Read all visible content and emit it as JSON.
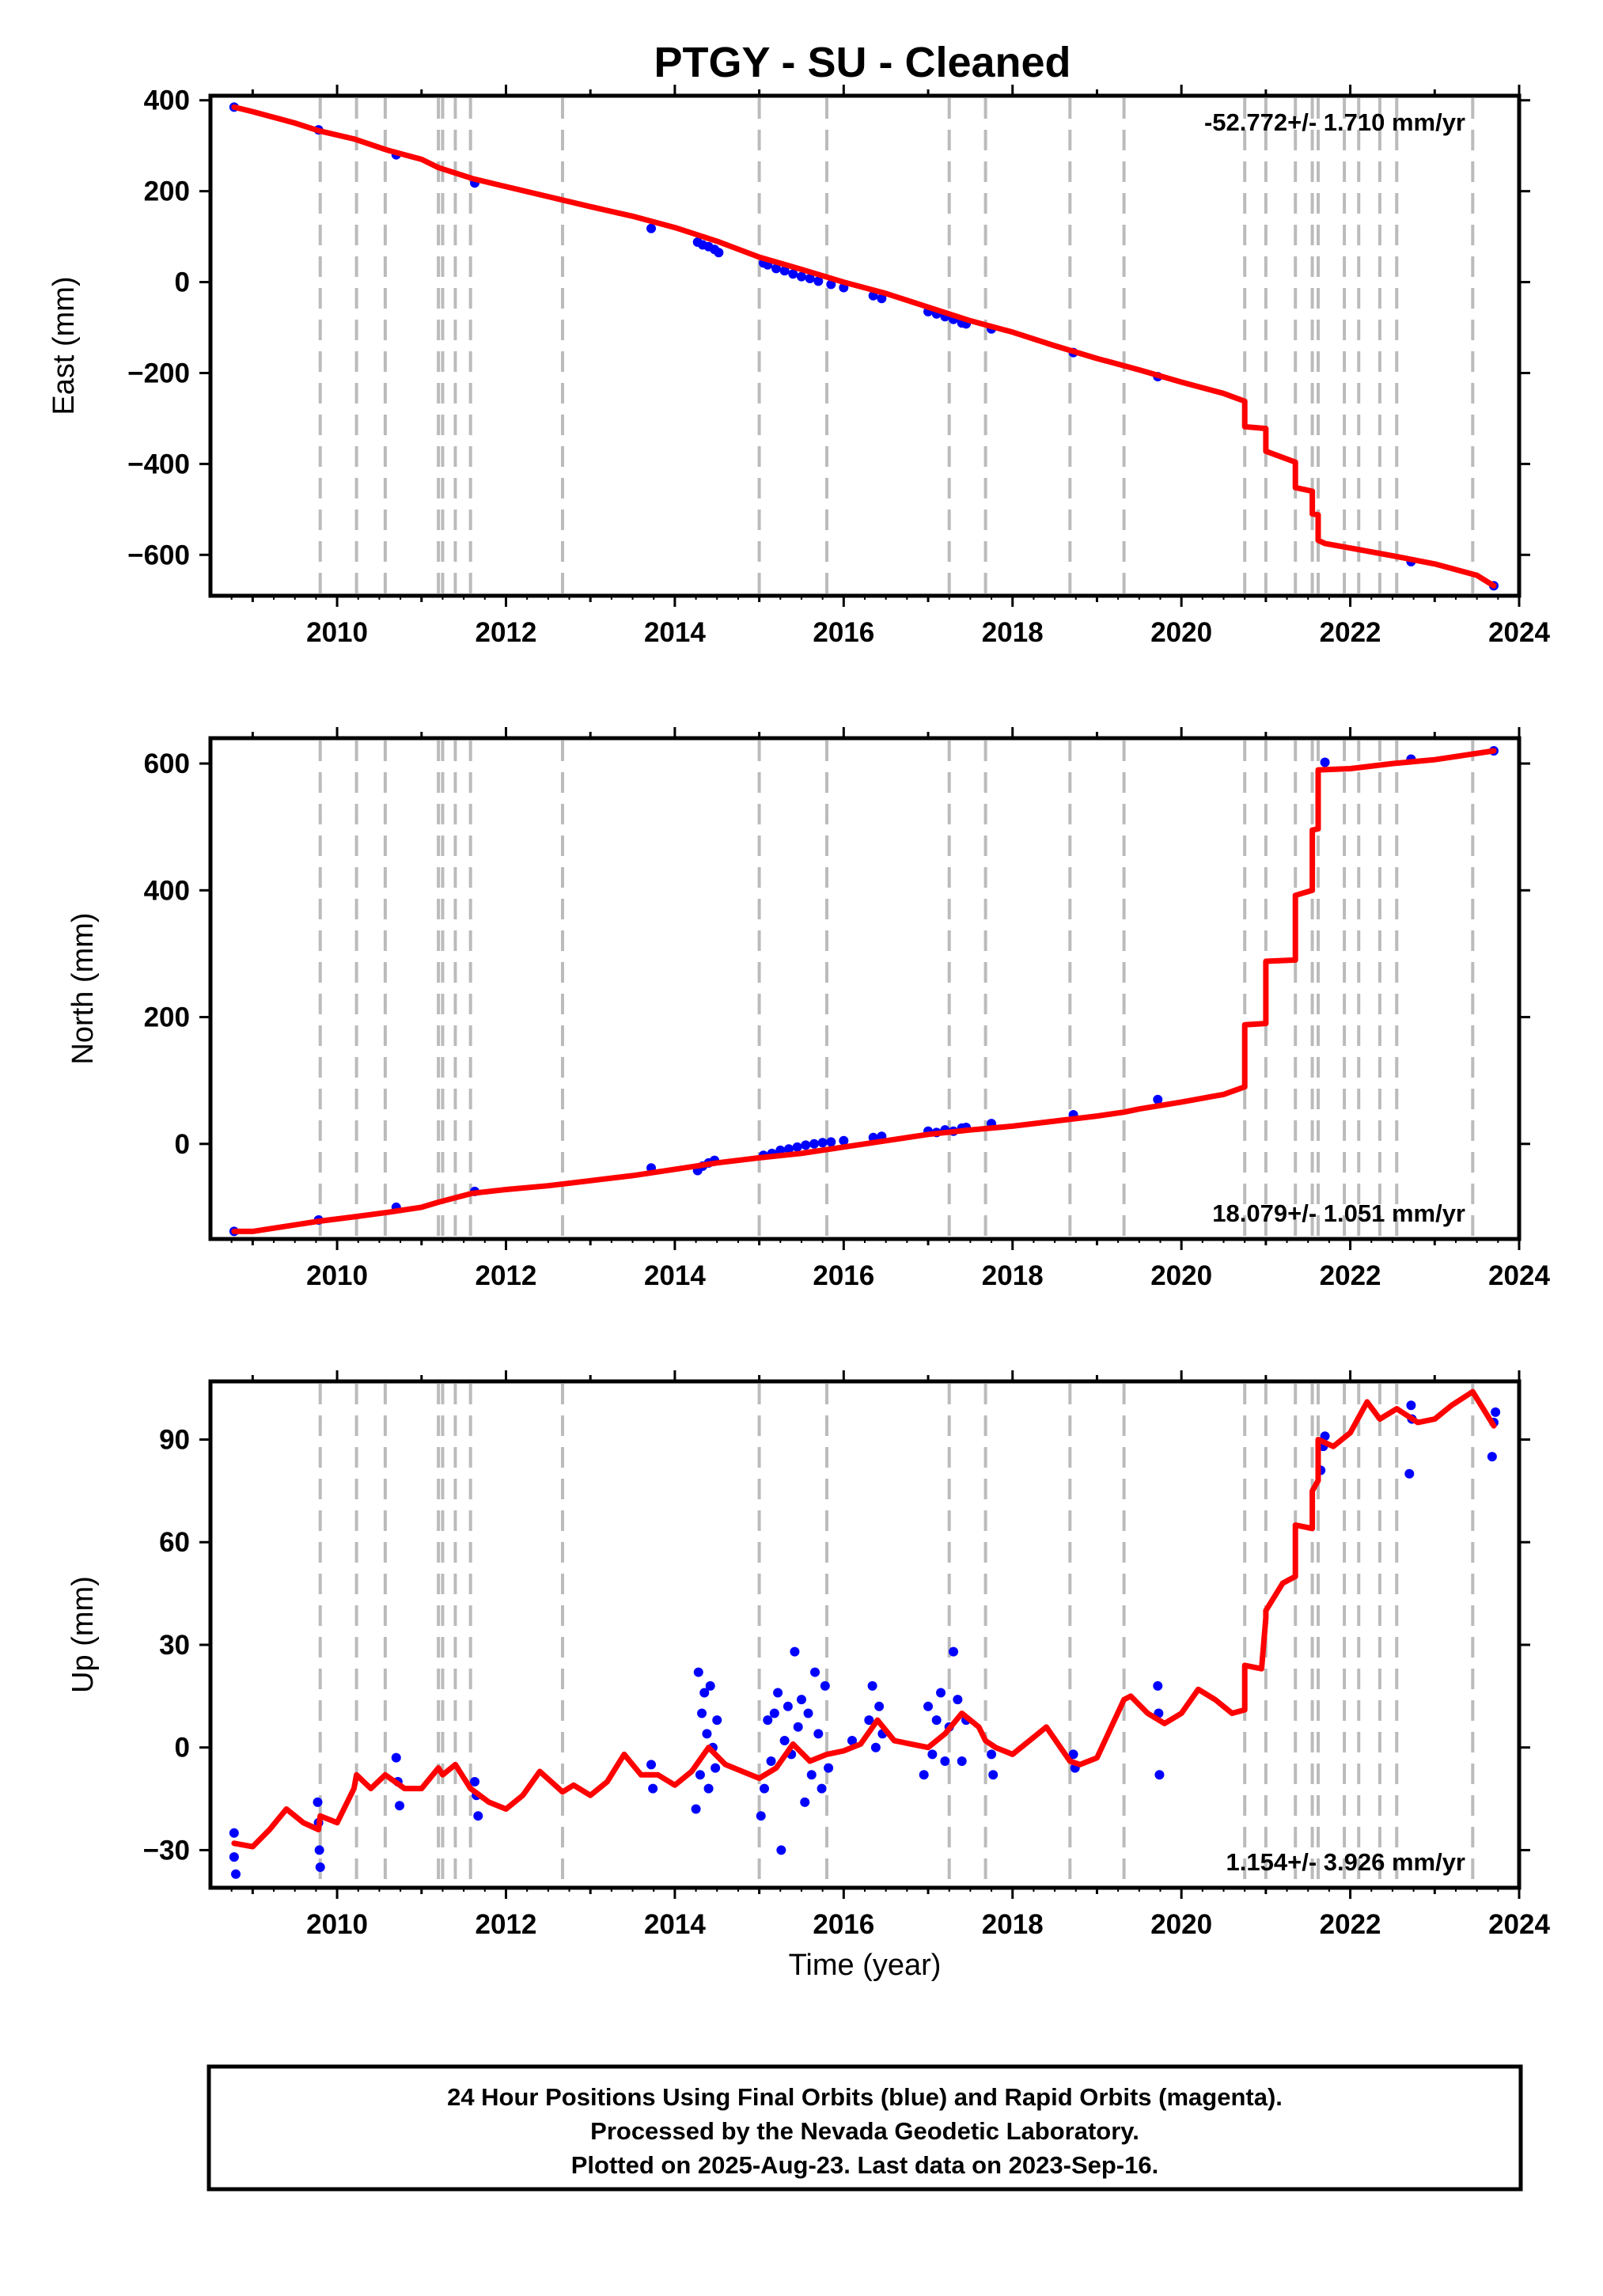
{
  "title": "PTGY  - SU - Cleaned",
  "colors": {
    "observations": "#0000ff",
    "model": "#ff0000",
    "events": "#bbbbbb",
    "frame": "#000000"
  },
  "footer": {
    "line1": "24 Hour Positions Using Final Orbits (blue) and Rapid Orbits (magenta).",
    "line2": "Processed by the Nevada Geodetic Laboratory.",
    "line3": "Plotted on 2025-Aug-23. Last data on 2023-Sep-16."
  },
  "chart_data": [
    {
      "type": "scatter",
      "ylabel": "East (mm)",
      "xlabel": "",
      "rate_label": "-52.772+/- 1.710 mm/yr",
      "xlim": [
        2008.5,
        2024
      ],
      "ylim": [
        -690,
        410
      ],
      "xticks": [
        2010,
        2012,
        2014,
        2016,
        2018,
        2020,
        2022,
        2024
      ],
      "yticks": [
        -600,
        -400,
        -200,
        0,
        200,
        400
      ],
      "ytick_labels": [
        "−600",
        "−400",
        "−200",
        "0",
        "200",
        "400"
      ],
      "event_lines": [
        2009.8,
        2010.23,
        2010.57,
        2011.2,
        2011.25,
        2011.4,
        2011.58,
        2012.67,
        2015.0,
        2015.8,
        2017.25,
        2017.68,
        2018.68,
        2019.32,
        2020.75,
        2021.0,
        2021.35,
        2021.55,
        2021.62,
        2021.93,
        2022.1,
        2022.35,
        2022.55,
        2023.45
      ],
      "series": [
        {
          "role": "observations",
          "x": [
            2008.78,
            2009.78,
            2010.7,
            2011.63,
            2013.72,
            2014.27,
            2014.33,
            2014.4,
            2014.47,
            2014.52,
            2015.05,
            2015.1,
            2015.2,
            2015.3,
            2015.4,
            2015.5,
            2015.6,
            2015.7,
            2015.85,
            2016.0,
            2016.35,
            2016.45,
            2017.0,
            2017.1,
            2017.2,
            2017.3,
            2017.4,
            2017.45,
            2017.75,
            2018.72,
            2019.72,
            2022.72,
            2023.7
          ],
          "y": [
            385,
            335,
            280,
            218,
            118,
            88,
            82,
            78,
            72,
            65,
            42,
            38,
            30,
            25,
            18,
            12,
            8,
            2,
            -5,
            -12,
            -30,
            -36,
            -65,
            -70,
            -76,
            -82,
            -90,
            -92,
            -103,
            -155,
            -208,
            -615,
            -668
          ]
        },
        {
          "role": "model",
          "x": [
            2008.78,
            2009.0,
            2009.5,
            2009.78,
            2010.2,
            2010.6,
            2011.0,
            2011.2,
            2011.6,
            2012.0,
            2012.5,
            2013.0,
            2013.5,
            2014.0,
            2014.5,
            2015.0,
            2015.5,
            2016.0,
            2016.5,
            2017.0,
            2017.5,
            2018.0,
            2018.5,
            2019.0,
            2019.5,
            2020.0,
            2020.5,
            2020.75,
            2020.75,
            2021.0,
            2021.0,
            2021.35,
            2021.35,
            2021.55,
            2021.55,
            2021.62,
            2021.62,
            2021.7,
            2022.0,
            2022.5,
            2023.0,
            2023.5,
            2023.7
          ],
          "y": [
            385,
            375,
            350,
            333,
            315,
            290,
            270,
            252,
            228,
            210,
            188,
            166,
            145,
            120,
            90,
            55,
            28,
            0,
            -25,
            -55,
            -85,
            -110,
            -140,
            -168,
            -193,
            -220,
            -245,
            -262,
            -318,
            -322,
            -372,
            -396,
            -452,
            -460,
            -510,
            -512,
            -568,
            -575,
            -585,
            -602,
            -620,
            -645,
            -668
          ]
        }
      ]
    },
    {
      "type": "scatter",
      "ylabel": "North (mm)",
      "xlabel": "",
      "rate_label": "18.079+/- 1.051 mm/yr",
      "xlim": [
        2008.5,
        2024
      ],
      "ylim": [
        -150,
        640
      ],
      "xticks": [
        2010,
        2012,
        2014,
        2016,
        2018,
        2020,
        2022,
        2024
      ],
      "yticks": [
        0,
        200,
        400,
        600
      ],
      "ytick_labels": [
        "0",
        "200",
        "400",
        "600"
      ],
      "event_lines": [
        2009.8,
        2010.23,
        2010.57,
        2011.2,
        2011.25,
        2011.4,
        2011.58,
        2012.67,
        2015.0,
        2015.8,
        2017.25,
        2017.68,
        2018.68,
        2019.32,
        2020.75,
        2021.0,
        2021.35,
        2021.55,
        2021.62,
        2021.93,
        2022.1,
        2022.35,
        2022.55,
        2023.45
      ],
      "series": [
        {
          "role": "observations",
          "x": [
            2008.78,
            2009.78,
            2010.7,
            2011.63,
            2013.72,
            2014.27,
            2014.33,
            2014.4,
            2014.47,
            2015.05,
            2015.15,
            2015.25,
            2015.35,
            2015.45,
            2015.55,
            2015.65,
            2015.75,
            2015.85,
            2016.0,
            2016.35,
            2016.45,
            2017.0,
            2017.1,
            2017.2,
            2017.3,
            2017.4,
            2017.45,
            2017.75,
            2018.72,
            2019.72,
            2021.7,
            2022.72,
            2023.7
          ],
          "y": [
            -138,
            -120,
            -100,
            -75,
            -38,
            -42,
            -35,
            -30,
            -26,
            -18,
            -15,
            -10,
            -8,
            -5,
            -2,
            0,
            2,
            3,
            5,
            10,
            12,
            20,
            18,
            22,
            20,
            25,
            26,
            32,
            46,
            70,
            602,
            607,
            620
          ]
        },
        {
          "role": "model",
          "x": [
            2008.78,
            2009.0,
            2009.78,
            2010.2,
            2010.6,
            2011.0,
            2011.2,
            2011.6,
            2012.0,
            2012.5,
            2013.0,
            2013.5,
            2014.0,
            2014.5,
            2015.0,
            2015.5,
            2016.0,
            2016.5,
            2017.0,
            2017.5,
            2018.0,
            2018.5,
            2019.0,
            2019.32,
            2019.5,
            2020.0,
            2020.5,
            2020.75,
            2020.75,
            2021.0,
            2021.0,
            2021.35,
            2021.35,
            2021.55,
            2021.55,
            2021.62,
            2021.62,
            2022.0,
            2022.5,
            2023.0,
            2023.7
          ],
          "y": [
            -138,
            -138,
            -122,
            -115,
            -108,
            -100,
            -92,
            -78,
            -72,
            -66,
            -58,
            -50,
            -40,
            -30,
            -22,
            -15,
            -5,
            5,
            15,
            22,
            28,
            36,
            44,
            50,
            55,
            66,
            78,
            90,
            188,
            190,
            288,
            290,
            392,
            400,
            495,
            497,
            590,
            592,
            600,
            606,
            620
          ]
        }
      ]
    },
    {
      "type": "scatter",
      "ylabel": "Up (mm)",
      "xlabel": "Time (year)",
      "rate_label": "1.154+/- 3.926 mm/yr",
      "xlim": [
        2008.5,
        2024
      ],
      "ylim": [
        -41,
        107
      ],
      "xticks": [
        2010,
        2012,
        2014,
        2016,
        2018,
        2020,
        2022,
        2024
      ],
      "yticks": [
        -30,
        0,
        30,
        60,
        90
      ],
      "ytick_labels": [
        "−30",
        "0",
        "30",
        "60",
        "90"
      ],
      "event_lines": [
        2009.8,
        2010.23,
        2010.57,
        2011.2,
        2011.25,
        2011.4,
        2011.58,
        2012.67,
        2015.0,
        2015.8,
        2017.25,
        2017.68,
        2018.68,
        2019.32,
        2020.75,
        2021.0,
        2021.35,
        2021.55,
        2021.62,
        2021.93,
        2022.1,
        2022.35,
        2022.55,
        2023.45
      ],
      "series": [
        {
          "role": "observations",
          "x": [
            2008.78,
            2008.78,
            2008.8,
            2009.77,
            2009.78,
            2009.79,
            2009.8,
            2010.7,
            2010.72,
            2010.74,
            2011.63,
            2011.65,
            2011.67,
            2013.72,
            2013.74,
            2014.25,
            2014.28,
            2014.3,
            2014.32,
            2014.35,
            2014.38,
            2014.4,
            2014.42,
            2014.45,
            2014.48,
            2014.5,
            2015.02,
            2015.06,
            2015.1,
            2015.14,
            2015.18,
            2015.22,
            2015.26,
            2015.3,
            2015.34,
            2015.38,
            2015.42,
            2015.46,
            2015.5,
            2015.54,
            2015.58,
            2015.62,
            2015.66,
            2015.7,
            2015.74,
            2015.78,
            2015.82,
            2016.1,
            2016.3,
            2016.34,
            2016.38,
            2016.42,
            2016.46,
            2016.95,
            2017.0,
            2017.05,
            2017.1,
            2017.15,
            2017.2,
            2017.25,
            2017.3,
            2017.35,
            2017.4,
            2017.45,
            2017.75,
            2017.77,
            2018.72,
            2018.74,
            2019.72,
            2019.73,
            2019.74,
            2021.65,
            2021.68,
            2021.7,
            2022.7,
            2022.72,
            2022.73,
            2023.68,
            2023.7,
            2023.72
          ],
          "y": [
            -25,
            -32,
            -37,
            -16,
            -22,
            -30,
            -35,
            -3,
            -10,
            -17,
            -10,
            -14,
            -20,
            -5,
            -12,
            -18,
            22,
            -8,
            10,
            16,
            4,
            -12,
            18,
            0,
            -6,
            8,
            -20,
            -12,
            8,
            -4,
            10,
            16,
            -30,
            2,
            12,
            -2,
            28,
            6,
            14,
            -16,
            10,
            -8,
            22,
            4,
            -12,
            18,
            -6,
            2,
            8,
            18,
            0,
            12,
            4,
            -8,
            12,
            -2,
            8,
            16,
            -4,
            6,
            28,
            14,
            -4,
            8,
            -2,
            -8,
            -2,
            -6,
            18,
            10,
            -8,
            81,
            88,
            91,
            80,
            100,
            96,
            85,
            95,
            98
          ]
        },
        {
          "role": "model",
          "x": [
            2008.78,
            2009.0,
            2009.2,
            2009.4,
            2009.6,
            2009.78,
            2009.8,
            2010.0,
            2010.2,
            2010.23,
            2010.4,
            2010.57,
            2010.8,
            2011.0,
            2011.2,
            2011.25,
            2011.4,
            2011.58,
            2011.8,
            2012.0,
            2012.2,
            2012.4,
            2012.67,
            2012.8,
            2013.0,
            2013.2,
            2013.4,
            2013.6,
            2013.8,
            2014.0,
            2014.2,
            2014.4,
            2014.6,
            2014.8,
            2015.0,
            2015.2,
            2015.4,
            2015.6,
            2015.8,
            2016.0,
            2016.2,
            2016.4,
            2016.6,
            2016.8,
            2017.0,
            2017.2,
            2017.4,
            2017.6,
            2017.68,
            2017.8,
            2018.0,
            2018.2,
            2018.4,
            2018.68,
            2018.8,
            2019.0,
            2019.32,
            2019.4,
            2019.6,
            2019.8,
            2020.0,
            2020.2,
            2020.4,
            2020.6,
            2020.75,
            2020.75,
            2020.95,
            2021.0,
            2021.0,
            2021.2,
            2021.35,
            2021.35,
            2021.55,
            2021.55,
            2021.62,
            2021.62,
            2021.8,
            2022.0,
            2022.2,
            2022.35,
            2022.55,
            2022.8,
            2023.0,
            2023.2,
            2023.45,
            2023.7
          ],
          "y": [
            -28,
            -29,
            -24,
            -18,
            -22,
            -24,
            -20,
            -22,
            -12,
            -8,
            -12,
            -8,
            -12,
            -12,
            -6,
            -8,
            -5,
            -12,
            -16,
            -18,
            -14,
            -7,
            -13,
            -11,
            -14,
            -10,
            -2,
            -8,
            -8,
            -11,
            -7,
            0,
            -5,
            -7,
            -9,
            -6,
            1,
            -4,
            -2,
            -1,
            1,
            8,
            2,
            1,
            0,
            4,
            10,
            6,
            2,
            0,
            -2,
            2,
            6,
            -4,
            -5,
            -3,
            14,
            15,
            10,
            7,
            10,
            17,
            14,
            10,
            11,
            24,
            23,
            38,
            40,
            48,
            50,
            65,
            64,
            75,
            78,
            90,
            88,
            92,
            101,
            96,
            99,
            95,
            96,
            100,
            104,
            94
          ]
        }
      ]
    }
  ]
}
